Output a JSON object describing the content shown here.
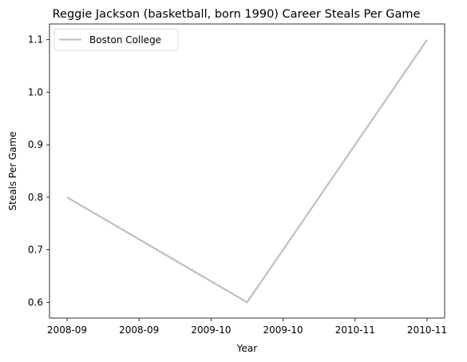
{
  "chart_data": {
    "type": "line",
    "title": "Reggie Jackson (basketball, born 1990) Career Steals Per Game",
    "xlabel": "Year",
    "ylabel": "Steals Per Game",
    "x_categories": [
      "2008-09",
      "2009-10",
      "2010-11"
    ],
    "x_tick_labels": [
      "2008-09",
      "2008-09",
      "2009-10",
      "2009-10",
      "2010-11",
      "2010-11"
    ],
    "y_ticks": [
      0.6,
      0.7,
      0.8,
      0.9,
      1.0,
      1.1
    ],
    "y_tick_labels": [
      "0.6",
      "0.7",
      "0.8",
      "0.9",
      "1.0",
      "1.1"
    ],
    "ylim": [
      0.57,
      1.13
    ],
    "grid": false,
    "legend_position": "upper-left",
    "series": [
      {
        "name": "Boston College",
        "color": "#bfbfbf",
        "values": [
          0.8,
          0.6,
          1.1
        ]
      }
    ]
  }
}
